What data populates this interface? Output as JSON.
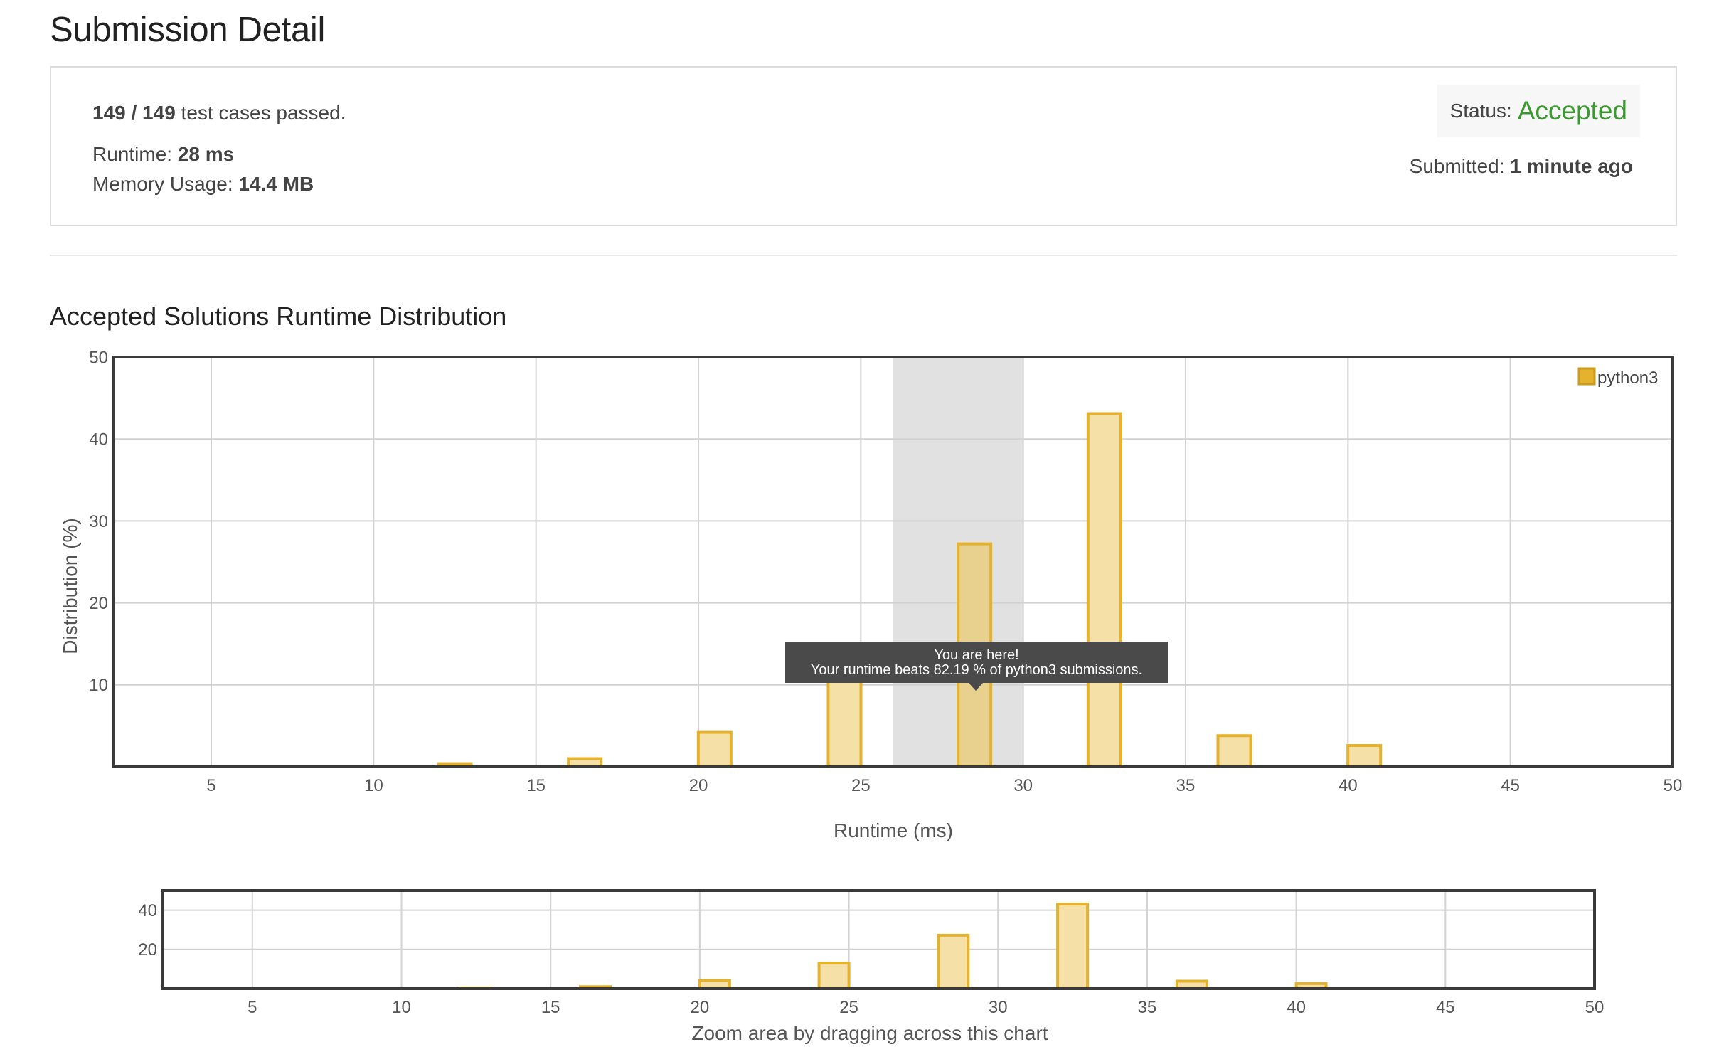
{
  "page": {
    "title": "Submission Detail",
    "section_title": "Accepted Solutions Runtime Distribution"
  },
  "summary": {
    "passed_count": "149 / 149",
    "passed_text": " test cases passed.",
    "runtime_label": "Runtime: ",
    "runtime_value": "28 ms",
    "memory_label": "Memory Usage: ",
    "memory_value": "14.4 MB",
    "status_label": "Status: ",
    "status_value": "Accepted",
    "submitted_label": "Submitted: ",
    "submitted_value": "1 minute ago"
  },
  "colors": {
    "bar_fill": "#f5e0a8",
    "bar_stroke": "#e4b22e",
    "highlight_band": "#e1e1e1",
    "accepted": "#3a9a2f",
    "tooltip_bg": "#4a4a4a"
  },
  "chart_data": [
    {
      "type": "bar",
      "xlabel": "Runtime (ms)",
      "ylabel": "Distribution (%)",
      "xlim": [
        2,
        50
      ],
      "ylim": [
        0,
        50
      ],
      "xticks": [
        "5",
        "10",
        "15",
        "20",
        "25",
        "30",
        "35",
        "40",
        "45",
        "50"
      ],
      "yticks": [
        "10",
        "20",
        "30",
        "40",
        "50"
      ],
      "grid": true,
      "legend_position": "top-right",
      "series": [
        {
          "name": "python3",
          "x": [
            12.5,
            16.5,
            20.5,
            24.5,
            28.5,
            32.5,
            36.5,
            40.5
          ],
          "values": [
            0.3,
            1.0,
            4.2,
            13.0,
            27.2,
            43.1,
            3.8,
            2.6
          ]
        }
      ],
      "highlight_range": [
        26,
        30
      ],
      "highlight_bar_x": 28.5,
      "tooltip": {
        "line1": "You are here!",
        "line2": "Your runtime beats 82.19 % of python3 submissions."
      }
    },
    {
      "type": "bar",
      "xlabel": "Zoom area by dragging across this chart",
      "xlim": [
        2,
        50
      ],
      "ylim": [
        0,
        50
      ],
      "xticks": [
        "5",
        "10",
        "15",
        "20",
        "25",
        "30",
        "35",
        "40",
        "45",
        "50"
      ],
      "yticks": [
        "20",
        "40"
      ],
      "grid": true,
      "series": [
        {
          "name": "python3",
          "x": [
            12.5,
            16.5,
            20.5,
            24.5,
            28.5,
            32.5,
            36.5,
            40.5
          ],
          "values": [
            0.3,
            1.0,
            4.2,
            13.0,
            27.2,
            43.1,
            3.8,
            2.6
          ]
        }
      ]
    }
  ]
}
